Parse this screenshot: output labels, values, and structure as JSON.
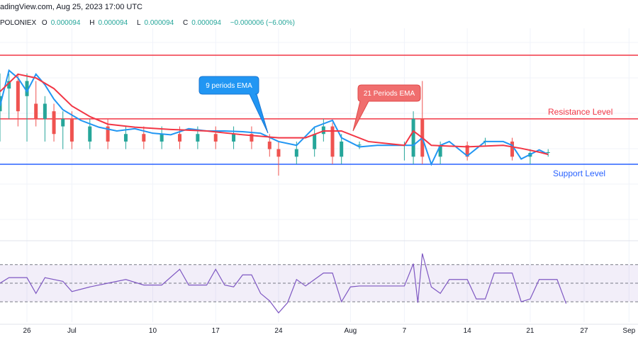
{
  "header": {
    "source_line": "adingView.com, Aug 25, 2023 17:00 UTC",
    "exchange": "POLONIEX",
    "open_label": "O",
    "open": "0.000094",
    "high_label": "H",
    "high": "0.000094",
    "low_label": "L",
    "low": "0.000094",
    "close_label": "C",
    "close": "0.000094",
    "change": "−0.000006 (−6.00%)"
  },
  "colors": {
    "up": "#26a69a",
    "down": "#ef5350",
    "ema9": "#2196f3",
    "ema21": "#f23645",
    "rsi": "#7e57c2",
    "support": "#2962ff",
    "resistance": "#f23645"
  },
  "chart_data": [
    {
      "type": "candlestick",
      "xlim": [
        "2023-06-23",
        "2023-09-02"
      ],
      "ylim": [
        8.39e-05,
        0.0001157
      ],
      "grid": true,
      "x_ticks": [
        {
          "date": "2023-06-26",
          "label": "26"
        },
        {
          "date": "2023-07-01",
          "label": "Jul"
        },
        {
          "date": "2023-07-10",
          "label": "10"
        },
        {
          "date": "2023-07-17",
          "label": "17"
        },
        {
          "date": "2023-07-24",
          "label": "24"
        },
        {
          "date": "2023-08-01",
          "label": "Aug"
        },
        {
          "date": "2023-08-07",
          "label": "7"
        },
        {
          "date": "2023-08-14",
          "label": "14"
        },
        {
          "date": "2023-08-21",
          "label": "21"
        },
        {
          "date": "2023-08-27",
          "label": "27"
        },
        {
          "date": "2023-09-01",
          "label": "Sep"
        }
      ],
      "candles": [
        [
          "2023-06-23",
          0.000101,
          0.000106,
          9.7e-05,
          0.000103
        ],
        [
          "2023-06-24",
          0.000104,
          0.000106,
          0.0001,
          0.000105
        ],
        [
          "2023-06-25",
          0.000105,
          0.000106,
          9.9e-05,
          0.000101
        ],
        [
          "2023-06-26",
          0.000103,
          0.000106,
          9.7e-05,
          0.000105
        ],
        [
          "2023-06-27",
          0.000102,
          0.000105,
          9.9e-05,
          0.0001
        ],
        [
          "2023-06-28",
          0.0001,
          0.000103,
          9.7e-05,
          0.000102
        ],
        [
          "2023-06-29",
          0.000101,
          0.000102,
          9.7e-05,
          9.8e-05
        ],
        [
          "2023-06-30",
          9.9e-05,
          0.000101,
          9.6e-05,
          0.0001
        ],
        [
          "2023-07-01",
          0.0001,
          0.000101,
          9.6e-05,
          9.7e-05
        ],
        [
          "2023-07-03",
          9.7e-05,
          0.0001,
          9.6e-05,
          9.9e-05
        ],
        [
          "2023-07-05",
          9.9e-05,
          0.0001,
          9.6e-05,
          9.7e-05
        ],
        [
          "2023-07-07",
          9.7e-05,
          9.9e-05,
          9.6e-05,
          9.8e-05
        ],
        [
          "2023-07-09",
          9.8e-05,
          9.9e-05,
          9.6e-05,
          9.7e-05
        ],
        [
          "2023-07-11",
          9.7e-05,
          9.9e-05,
          9.6e-05,
          9.8e-05
        ],
        [
          "2023-07-13",
          9.8e-05,
          9.9e-05,
          9.6e-05,
          9.7e-05
        ],
        [
          "2023-07-15",
          9.7e-05,
          9.9e-05,
          9.6e-05,
          9.8e-05
        ],
        [
          "2023-07-17",
          9.8e-05,
          9.9e-05,
          9.6e-05,
          9.7e-05
        ],
        [
          "2023-07-19",
          9.7e-05,
          9.9e-05,
          9.6e-05,
          9.8e-05
        ],
        [
          "2023-07-21",
          9.8e-05,
          9.9e-05,
          9.6e-05,
          9.7e-05
        ],
        [
          "2023-07-23",
          9.7e-05,
          9.8e-05,
          9.5e-05,
          9.6e-05
        ],
        [
          "2023-07-24",
          9.6e-05,
          9.7e-05,
          9.25e-05,
          9.5e-05
        ],
        [
          "2023-07-26",
          9.5e-05,
          9.7e-05,
          9.4e-05,
          9.6e-05
        ],
        [
          "2023-07-28",
          9.6e-05,
          9.9e-05,
          9.5e-05,
          9.8e-05
        ],
        [
          "2023-07-29",
          9.8e-05,
          0.0001,
          9.7e-05,
          9.9e-05
        ],
        [
          "2023-07-30",
          9.9e-05,
          9.95e-05,
          9.4e-05,
          9.5e-05
        ],
        [
          "2023-07-31",
          9.5e-05,
          9.8e-05,
          9.4e-05,
          9.7e-05
        ],
        [
          "2023-08-02",
          9.65e-05,
          9.7e-05,
          9.6e-05,
          9.66e-05
        ],
        [
          "2023-08-07",
          9.65e-05,
          9.7e-05,
          9.45e-05,
          9.66e-05
        ],
        [
          "2023-08-08",
          9.5e-05,
          0.000101,
          9.4e-05,
          0.0001
        ],
        [
          "2023-08-09",
          0.0001,
          0.000105,
          9.4e-05,
          9.5e-05
        ],
        [
          "2023-08-11",
          9.5e-05,
          9.7e-05,
          9.4e-05,
          9.65e-05
        ],
        [
          "2023-08-14",
          9.65e-05,
          9.7e-05,
          9.45e-05,
          9.5e-05
        ],
        [
          "2023-08-16",
          9.7e-05,
          9.75e-05,
          9.65e-05,
          9.71e-05
        ],
        [
          "2023-08-19",
          9.7e-05,
          9.75e-05,
          9.45e-05,
          9.5e-05
        ],
        [
          "2023-08-21",
          9.5e-05,
          9.6e-05,
          9.4e-05,
          9.55e-05
        ],
        [
          "2023-08-23",
          9.55e-05,
          9.6e-05,
          9.5e-05,
          9.56e-05
        ]
      ],
      "series": [
        {
          "name": "9 periods EMA",
          "color": "#2196f3",
          "points": [
            [
              "2023-06-23",
              0.0001017
            ],
            [
              "2023-06-24",
              0.0001064
            ],
            [
              "2023-06-25",
              0.0001054
            ],
            [
              "2023-06-26",
              0.0001036
            ],
            [
              "2023-06-27",
              0.0001059
            ],
            [
              "2023-06-28",
              0.0001045
            ],
            [
              "2023-06-29",
              0.0001026
            ],
            [
              "2023-06-30",
              0.0001012
            ],
            [
              "2023-07-02",
              9.98e-05
            ],
            [
              "2023-07-04",
              9.89e-05
            ],
            [
              "2023-07-06",
              9.84e-05
            ],
            [
              "2023-07-08",
              9.87e-05
            ],
            [
              "2023-07-10",
              9.81e-05
            ],
            [
              "2023-07-12",
              9.79e-05
            ],
            [
              "2023-07-14",
              9.87e-05
            ],
            [
              "2023-07-16",
              9.84e-05
            ],
            [
              "2023-07-18",
              9.84e-05
            ],
            [
              "2023-07-20",
              9.83e-05
            ],
            [
              "2023-07-22",
              9.81e-05
            ],
            [
              "2023-07-24",
              9.7e-05
            ],
            [
              "2023-07-26",
              9.65e-05
            ],
            [
              "2023-07-28",
              9.89e-05
            ],
            [
              "2023-07-30",
              9.98e-05
            ],
            [
              "2023-07-31",
              9.75e-05
            ],
            [
              "2023-08-02",
              9.63e-05
            ],
            [
              "2023-08-04",
              9.65e-05
            ],
            [
              "2023-08-06",
              9.65e-05
            ],
            [
              "2023-08-08",
              9.65e-05
            ],
            [
              "2023-08-09",
              9.75e-05
            ],
            [
              "2023-08-10",
              9.4e-05
            ],
            [
              "2023-08-11",
              9.65e-05
            ],
            [
              "2023-08-12",
              9.7e-05
            ],
            [
              "2023-08-14",
              9.51e-05
            ],
            [
              "2023-08-16",
              9.7e-05
            ],
            [
              "2023-08-18",
              9.7e-05
            ],
            [
              "2023-08-19",
              9.65e-05
            ],
            [
              "2023-08-20",
              9.47e-05
            ],
            [
              "2023-08-21",
              9.53e-05
            ],
            [
              "2023-08-22",
              9.59e-05
            ],
            [
              "2023-08-23",
              9.53e-05
            ]
          ]
        },
        {
          "name": "21 Periods EMA",
          "color": "#f23645",
          "points": [
            [
              "2023-06-23",
              0.0001036
            ],
            [
              "2023-06-25",
              0.0001059
            ],
            [
              "2023-06-27",
              0.0001054
            ],
            [
              "2023-06-29",
              0.000104
            ],
            [
              "2023-07-01",
              0.0001017
            ],
            [
              "2023-07-03",
              0.0001003
            ],
            [
              "2023-07-05",
              9.93e-05
            ],
            [
              "2023-07-08",
              9.89e-05
            ],
            [
              "2023-07-12",
              9.86e-05
            ],
            [
              "2023-07-16",
              9.84e-05
            ],
            [
              "2023-07-20",
              9.79e-05
            ],
            [
              "2023-07-24",
              9.75e-05
            ],
            [
              "2023-07-27",
              9.75e-05
            ],
            [
              "2023-07-29",
              9.84e-05
            ],
            [
              "2023-07-31",
              9.84e-05
            ],
            [
              "2023-08-03",
              9.7e-05
            ],
            [
              "2023-08-07",
              9.65e-05
            ],
            [
              "2023-08-08",
              9.84e-05
            ],
            [
              "2023-08-09",
              9.75e-05
            ],
            [
              "2023-08-10",
              9.65e-05
            ],
            [
              "2023-08-14",
              9.63e-05
            ],
            [
              "2023-08-18",
              9.65e-05
            ],
            [
              "2023-08-20",
              9.61e-05
            ],
            [
              "2023-08-22",
              9.56e-05
            ],
            [
              "2023-08-23",
              9.53e-05
            ]
          ]
        }
      ],
      "levels": [
        {
          "name": "Resistance Level",
          "value": 0.0001,
          "color": "#f23645"
        },
        {
          "name": "Support Level",
          "value": 9.4e-05,
          "color": "#2962ff"
        },
        {
          "value": 0.0001084,
          "color": "#f23645"
        }
      ],
      "annotations": [
        {
          "text": "9 periods EMA",
          "color": "#2196f3"
        },
        {
          "text": "21 Periods EMA",
          "color": "#f23645"
        }
      ]
    },
    {
      "type": "line",
      "ylim": [
        8,
        92
      ],
      "bands": [
        30,
        50,
        70
      ],
      "series": [
        {
          "color": "#7e57c2",
          "points": [
            [
              "2023-06-23",
              50
            ],
            [
              "2023-06-24",
              56
            ],
            [
              "2023-06-26",
              56
            ],
            [
              "2023-06-27",
              39
            ],
            [
              "2023-06-28",
              56
            ],
            [
              "2023-06-30",
              52
            ],
            [
              "2023-07-01",
              41
            ],
            [
              "2023-07-03",
              46
            ],
            [
              "2023-07-05",
              50
            ],
            [
              "2023-07-07",
              54
            ],
            [
              "2023-07-09",
              48
            ],
            [
              "2023-07-11",
              48
            ],
            [
              "2023-07-13",
              65
            ],
            [
              "2023-07-14",
              48
            ],
            [
              "2023-07-16",
              48
            ],
            [
              "2023-07-17",
              65
            ],
            [
              "2023-07-18",
              48
            ],
            [
              "2023-07-19",
              46
            ],
            [
              "2023-07-20",
              59
            ],
            [
              "2023-07-21",
              59
            ],
            [
              "2023-07-22",
              39
            ],
            [
              "2023-07-23",
              31
            ],
            [
              "2023-07-24",
              18
            ],
            [
              "2023-07-25",
              29
            ],
            [
              "2023-07-26",
              54
            ],
            [
              "2023-07-27",
              47
            ],
            [
              "2023-07-28",
              54
            ],
            [
              "2023-07-29",
              61
            ],
            [
              "2023-07-30",
              61
            ],
            [
              "2023-07-31",
              30
            ],
            [
              "2023-08-01",
              46
            ],
            [
              "2023-08-02",
              47
            ],
            [
              "2023-08-07",
              47
            ],
            [
              "2023-08-08",
              71
            ],
            [
              "2023-08-08T12:00",
              29
            ],
            [
              "2023-08-09",
              82
            ],
            [
              "2023-08-10",
              46
            ],
            [
              "2023-08-11",
              39
            ],
            [
              "2023-08-12",
              54
            ],
            [
              "2023-08-14",
              54
            ],
            [
              "2023-08-15",
              33
            ],
            [
              "2023-08-16",
              33
            ],
            [
              "2023-08-17",
              61
            ],
            [
              "2023-08-19",
              61
            ],
            [
              "2023-08-20",
              30
            ],
            [
              "2023-08-21",
              33
            ],
            [
              "2023-08-22",
              54
            ],
            [
              "2023-08-24",
              54
            ],
            [
              "2023-08-24T12:00",
              41
            ],
            [
              "2023-08-25",
              28
            ]
          ]
        }
      ]
    }
  ]
}
